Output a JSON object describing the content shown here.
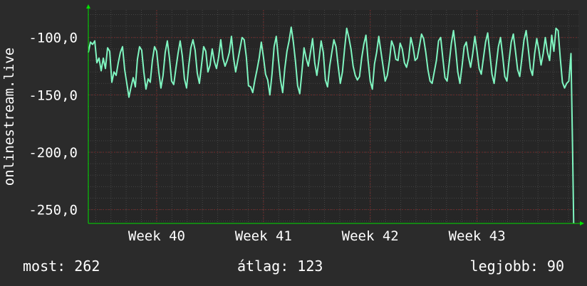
{
  "chart_data": {
    "type": "line",
    "ylabel": "onlinestream.live",
    "yticks": [
      {
        "value": -100,
        "label": "-100,0"
      },
      {
        "value": -150,
        "label": "-150,0"
      },
      {
        "value": -200,
        "label": "-200,0"
      },
      {
        "value": -250,
        "label": "-250,0"
      }
    ],
    "ylim": [
      -262,
      -76
    ],
    "xticks": [
      {
        "value": 40,
        "label": "Week 40"
      },
      {
        "value": 41,
        "label": "Week 41"
      },
      {
        "value": 42,
        "label": "Week 42"
      },
      {
        "value": 43,
        "label": "Week 43"
      }
    ],
    "xlim": [
      39.36,
      43.95
    ],
    "grid": true,
    "series": [
      {
        "color": "#7ff5c0",
        "points": [
          [
            39.36,
            -113
          ],
          [
            39.38,
            -104
          ],
          [
            39.4,
            -106
          ],
          [
            39.42,
            -103
          ],
          [
            39.44,
            -122
          ],
          [
            39.46,
            -118
          ],
          [
            39.48,
            -129
          ],
          [
            39.5,
            -118
          ],
          [
            39.52,
            -127
          ],
          [
            39.54,
            -109
          ],
          [
            39.56,
            -112
          ],
          [
            39.58,
            -139
          ],
          [
            39.6,
            -130
          ],
          [
            39.62,
            -133
          ],
          [
            39.64,
            -122
          ],
          [
            39.66,
            -113
          ],
          [
            39.68,
            -108
          ],
          [
            39.7,
            -128
          ],
          [
            39.72,
            -140
          ],
          [
            39.74,
            -152
          ],
          [
            39.76,
            -143
          ],
          [
            39.78,
            -135
          ],
          [
            39.8,
            -143
          ],
          [
            39.82,
            -119
          ],
          [
            39.84,
            -108
          ],
          [
            39.86,
            -111
          ],
          [
            39.88,
            -130
          ],
          [
            39.9,
            -145
          ],
          [
            39.92,
            -136
          ],
          [
            39.94,
            -139
          ],
          [
            39.96,
            -120
          ],
          [
            39.98,
            -108
          ],
          [
            40.0,
            -112
          ],
          [
            40.02,
            -130
          ],
          [
            40.04,
            -144
          ],
          [
            40.06,
            -133
          ],
          [
            40.08,
            -113
          ],
          [
            40.1,
            -103
          ],
          [
            40.12,
            -118
          ],
          [
            40.14,
            -138
          ],
          [
            40.16,
            -141
          ],
          [
            40.18,
            -127
          ],
          [
            40.2,
            -114
          ],
          [
            40.22,
            -103
          ],
          [
            40.24,
            -116
          ],
          [
            40.26,
            -136
          ],
          [
            40.28,
            -144
          ],
          [
            40.3,
            -125
          ],
          [
            40.32,
            -109
          ],
          [
            40.34,
            -102
          ],
          [
            40.36,
            -111
          ],
          [
            40.38,
            -131
          ],
          [
            40.4,
            -140
          ],
          [
            40.42,
            -124
          ],
          [
            40.44,
            -108
          ],
          [
            40.46,
            -112
          ],
          [
            40.48,
            -130
          ],
          [
            40.5,
            -124
          ],
          [
            40.52,
            -110
          ],
          [
            40.54,
            -121
          ],
          [
            40.56,
            -127
          ],
          [
            40.58,
            -117
          ],
          [
            40.6,
            -102
          ],
          [
            40.62,
            -118
          ],
          [
            40.64,
            -125
          ],
          [
            40.66,
            -120
          ],
          [
            40.68,
            -113
          ],
          [
            40.7,
            -99
          ],
          [
            40.72,
            -118
          ],
          [
            40.74,
            -130
          ],
          [
            40.76,
            -120
          ],
          [
            40.78,
            -110
          ],
          [
            40.8,
            -100
          ],
          [
            40.82,
            -102
          ],
          [
            40.84,
            -117
          ],
          [
            40.86,
            -142
          ],
          [
            40.88,
            -143
          ],
          [
            40.9,
            -148
          ],
          [
            40.92,
            -137
          ],
          [
            40.94,
            -128
          ],
          [
            40.96,
            -118
          ],
          [
            40.98,
            -104
          ],
          [
            41.0,
            -117
          ],
          [
            41.02,
            -132
          ],
          [
            41.04,
            -137
          ],
          [
            41.06,
            -150
          ],
          [
            41.08,
            -132
          ],
          [
            41.1,
            -108
          ],
          [
            41.12,
            -99
          ],
          [
            41.14,
            -119
          ],
          [
            41.16,
            -137
          ],
          [
            41.18,
            -148
          ],
          [
            41.2,
            -127
          ],
          [
            41.22,
            -112
          ],
          [
            41.24,
            -103
          ],
          [
            41.26,
            -91
          ],
          [
            41.28,
            -104
          ],
          [
            41.3,
            -121
          ],
          [
            41.32,
            -142
          ],
          [
            41.34,
            -149
          ],
          [
            41.36,
            -130
          ],
          [
            41.38,
            -109
          ],
          [
            41.4,
            -118
          ],
          [
            41.42,
            -125
          ],
          [
            41.44,
            -113
          ],
          [
            41.46,
            -101
          ],
          [
            41.48,
            -122
          ],
          [
            41.5,
            -133
          ],
          [
            41.52,
            -119
          ],
          [
            41.54,
            -103
          ],
          [
            41.56,
            -113
          ],
          [
            41.58,
            -137
          ],
          [
            41.6,
            -143
          ],
          [
            41.62,
            -125
          ],
          [
            41.64,
            -113
          ],
          [
            41.66,
            -102
          ],
          [
            41.68,
            -108
          ],
          [
            41.7,
            -125
          ],
          [
            41.72,
            -140
          ],
          [
            41.74,
            -130
          ],
          [
            41.76,
            -110
          ],
          [
            41.78,
            -92
          ],
          [
            41.8,
            -100
          ],
          [
            41.82,
            -110
          ],
          [
            41.84,
            -125
          ],
          [
            41.86,
            -133
          ],
          [
            41.88,
            -137
          ],
          [
            41.9,
            -134
          ],
          [
            41.92,
            -118
          ],
          [
            41.94,
            -106
          ],
          [
            41.96,
            -98
          ],
          [
            41.98,
            -120
          ],
          [
            42.0,
            -138
          ],
          [
            42.02,
            -145
          ],
          [
            42.04,
            -123
          ],
          [
            42.06,
            -113
          ],
          [
            42.08,
            -99
          ],
          [
            42.1,
            -112
          ],
          [
            42.12,
            -125
          ],
          [
            42.14,
            -138
          ],
          [
            42.16,
            -133
          ],
          [
            42.18,
            -120
          ],
          [
            42.2,
            -103
          ],
          [
            42.22,
            -108
          ],
          [
            42.24,
            -119
          ],
          [
            42.26,
            -120
          ],
          [
            42.28,
            -105
          ],
          [
            42.3,
            -110
          ],
          [
            42.32,
            -122
          ],
          [
            42.34,
            -126
          ],
          [
            42.36,
            -118
          ],
          [
            42.38,
            -100
          ],
          [
            42.4,
            -108
          ],
          [
            42.42,
            -120
          ],
          [
            42.44,
            -118
          ],
          [
            42.46,
            -108
          ],
          [
            42.48,
            -97
          ],
          [
            42.5,
            -101
          ],
          [
            42.52,
            -113
          ],
          [
            42.54,
            -128
          ],
          [
            42.56,
            -138
          ],
          [
            42.58,
            -140
          ],
          [
            42.6,
            -130
          ],
          [
            42.62,
            -120
          ],
          [
            42.64,
            -103
          ],
          [
            42.66,
            -100
          ],
          [
            42.68,
            -118
          ],
          [
            42.7,
            -135
          ],
          [
            42.72,
            -138
          ],
          [
            42.74,
            -122
          ],
          [
            42.76,
            -105
          ],
          [
            42.78,
            -94
          ],
          [
            42.8,
            -110
          ],
          [
            42.82,
            -130
          ],
          [
            42.84,
            -140
          ],
          [
            42.86,
            -125
          ],
          [
            42.88,
            -108
          ],
          [
            42.9,
            -104
          ],
          [
            42.92,
            -117
          ],
          [
            42.94,
            -126
          ],
          [
            42.96,
            -114
          ],
          [
            42.98,
            -99
          ],
          [
            43.0,
            -112
          ],
          [
            43.02,
            -127
          ],
          [
            43.04,
            -132
          ],
          [
            43.06,
            -118
          ],
          [
            43.08,
            -104
          ],
          [
            43.1,
            -96
          ],
          [
            43.12,
            -114
          ],
          [
            43.14,
            -132
          ],
          [
            43.16,
            -140
          ],
          [
            43.18,
            -124
          ],
          [
            43.2,
            -108
          ],
          [
            43.22,
            -100
          ],
          [
            43.24,
            -116
          ],
          [
            43.26,
            -134
          ],
          [
            43.28,
            -138
          ],
          [
            43.3,
            -120
          ],
          [
            43.32,
            -104
          ],
          [
            43.34,
            -97
          ],
          [
            43.36,
            -112
          ],
          [
            43.38,
            -128
          ],
          [
            43.4,
            -134
          ],
          [
            43.42,
            -118
          ],
          [
            43.44,
            -102
          ],
          [
            43.46,
            -94
          ],
          [
            43.48,
            -110
          ],
          [
            43.5,
            -127
          ],
          [
            43.52,
            -133
          ],
          [
            43.54,
            -114
          ],
          [
            43.56,
            -101
          ],
          [
            43.58,
            -111
          ],
          [
            43.6,
            -124
          ],
          [
            43.62,
            -114
          ],
          [
            43.64,
            -100
          ],
          [
            43.66,
            -113
          ],
          [
            43.68,
            -120
          ],
          [
            43.7,
            -98
          ],
          [
            43.72,
            -112
          ],
          [
            43.74,
            -92
          ],
          [
            43.76,
            -94
          ],
          [
            43.78,
            -118
          ],
          [
            43.8,
            -139
          ],
          [
            43.82,
            -144
          ],
          [
            43.84,
            -140
          ],
          [
            43.86,
            -138
          ],
          [
            43.88,
            -114
          ],
          [
            43.895,
            -199
          ],
          [
            43.905,
            -262
          ]
        ]
      }
    ]
  },
  "stats": {
    "now": "most: 262",
    "avg": "átlag: 123",
    "best": "legjobb: 90"
  },
  "colors": {
    "background": "#2b2b2b",
    "plot_background": "#262626",
    "line": "#7ff5c0",
    "grid_minor": "#444444",
    "grid_major": "#6e2a2a",
    "arrow": "#00e000",
    "text": "#ffffff"
  }
}
